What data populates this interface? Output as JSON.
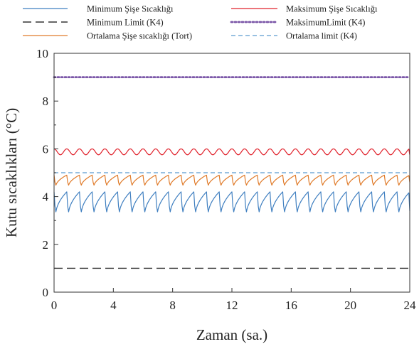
{
  "chart_data": {
    "type": "line",
    "xlabel": "Zaman (sa.)",
    "ylabel": "Kutu sıcaklıkları (°C)",
    "xlim": [
      0,
      24
    ],
    "ylim": [
      0,
      10
    ],
    "xticks": [
      0,
      4,
      8,
      12,
      16,
      20,
      24
    ],
    "yticks": [
      0,
      2,
      4,
      6,
      8,
      10
    ],
    "grid": false,
    "legend_placement": "top, two columns",
    "series": [
      {
        "name": "Minimum Şişe Sıcaklığı",
        "color": "#3f7fc0",
        "style": "solid",
        "pattern": {
          "kind": "sawtooth",
          "period_h": 0.87,
          "high": 4.2,
          "low": 3.2
        }
      },
      {
        "name": "Maksimum Şişe Sıcaklığı",
        "color": "#e0202a",
        "style": "solid",
        "pattern": {
          "kind": "wave",
          "period_h": 0.87,
          "high": 6.0,
          "low": 5.75
        }
      },
      {
        "name": "Minimum Limit (K4)",
        "color": "#333333",
        "style": "longdash",
        "x": [
          0,
          24
        ],
        "y": [
          1,
          1
        ]
      },
      {
        "name": "MaksimumLimit (K4)",
        "color": "#7b57a8",
        "style": "dotted",
        "x": [
          0,
          24
        ],
        "y": [
          9,
          9
        ]
      },
      {
        "name": "Ortalama Şişe sıcaklığı (Tort)",
        "color": "#e07b2a",
        "style": "solid",
        "pattern": {
          "kind": "sawtooth",
          "period_h": 0.87,
          "high": 4.9,
          "low": 4.4
        }
      },
      {
        "name": "Ortalama limit (K4)",
        "color": "#5a9bcf",
        "style": "dashed",
        "x": [
          0,
          24
        ],
        "y": [
          5,
          5
        ]
      }
    ]
  }
}
